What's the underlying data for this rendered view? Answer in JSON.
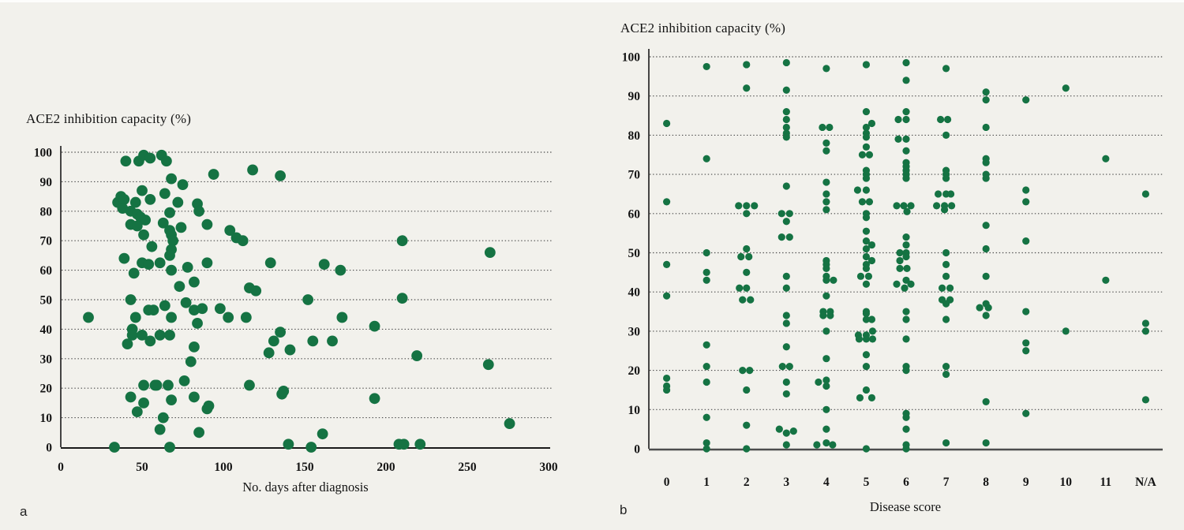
{
  "figure": {
    "background_color": "#f2f1ec",
    "dot_color": "#157343",
    "axis_color": "#1a1a1a",
    "grid_color": "#4a4a4a",
    "panel_a_letter": "a",
    "panel_b_letter": "b"
  },
  "chart_data": [
    {
      "type": "scatter",
      "panel": "a",
      "title": "ACE2 inhibition capacity (%)",
      "xlabel": "No. days after diagnosis",
      "ylabel": "ACE2 inhibition capacity (%)",
      "xlim": [
        0,
        300
      ],
      "ylim": [
        0,
        100
      ],
      "xticks": [
        0,
        50,
        100,
        150,
        200,
        250,
        300
      ],
      "yticks": [
        0,
        10,
        20,
        30,
        40,
        50,
        60,
        70,
        80,
        90,
        100
      ],
      "grid": "horizontal-dotted",
      "legend": "none",
      "points": [
        [
          40,
          97
        ],
        [
          48,
          97
        ],
        [
          51,
          99
        ],
        [
          55,
          98
        ],
        [
          62,
          99
        ],
        [
          65,
          97
        ],
        [
          68,
          91
        ],
        [
          75,
          89
        ],
        [
          94,
          92.5
        ],
        [
          118,
          94
        ],
        [
          135,
          92
        ],
        [
          35,
          83
        ],
        [
          37,
          85
        ],
        [
          39,
          84
        ],
        [
          38,
          81
        ],
        [
          43,
          80
        ],
        [
          46,
          83
        ],
        [
          50,
          87
        ],
        [
          55,
          84
        ],
        [
          47,
          79
        ],
        [
          49,
          78
        ],
        [
          52,
          77
        ],
        [
          43,
          75.5
        ],
        [
          47,
          75
        ],
        [
          64,
          86
        ],
        [
          67,
          79.5
        ],
        [
          63,
          76
        ],
        [
          72,
          83
        ],
        [
          84,
          82.5
        ],
        [
          85,
          80
        ],
        [
          90,
          75.5
        ],
        [
          51,
          72
        ],
        [
          67,
          73.5
        ],
        [
          68,
          72
        ],
        [
          69,
          70
        ],
        [
          74,
          74.5
        ],
        [
          104,
          73.5
        ],
        [
          108,
          71
        ],
        [
          112,
          70
        ],
        [
          210,
          70
        ],
        [
          56,
          68
        ],
        [
          68,
          67
        ],
        [
          67,
          65
        ],
        [
          39,
          64
        ],
        [
          50,
          62.5
        ],
        [
          54,
          62
        ],
        [
          61,
          62.5
        ],
        [
          68,
          60
        ],
        [
          78,
          61
        ],
        [
          90,
          62.5
        ],
        [
          129,
          62.5
        ],
        [
          162,
          62
        ],
        [
          172,
          60
        ],
        [
          264,
          66
        ],
        [
          45,
          59
        ],
        [
          73,
          54.5
        ],
        [
          82,
          56
        ],
        [
          116,
          54
        ],
        [
          120,
          53
        ],
        [
          43,
          50
        ],
        [
          152,
          50
        ],
        [
          210,
          50.5
        ],
        [
          17,
          44
        ],
        [
          46,
          44
        ],
        [
          54,
          46.5
        ],
        [
          57,
          46.5
        ],
        [
          64,
          48
        ],
        [
          68,
          44
        ],
        [
          77,
          49
        ],
        [
          82,
          46.5
        ],
        [
          87,
          47
        ],
        [
          84,
          42
        ],
        [
          98,
          47
        ],
        [
          103,
          44
        ],
        [
          114,
          44
        ],
        [
          44,
          40
        ],
        [
          173,
          44
        ],
        [
          193,
          41
        ],
        [
          44,
          38
        ],
        [
          50,
          38
        ],
        [
          55,
          36
        ],
        [
          61,
          38
        ],
        [
          67,
          38
        ],
        [
          41,
          35
        ],
        [
          82,
          34
        ],
        [
          128,
          32
        ],
        [
          131,
          36
        ],
        [
          135,
          39
        ],
        [
          141,
          33
        ],
        [
          155,
          36
        ],
        [
          167,
          36
        ],
        [
          219,
          31
        ],
        [
          51,
          21
        ],
        [
          58,
          21
        ],
        [
          59,
          21
        ],
        [
          66,
          21
        ],
        [
          76,
          22.5
        ],
        [
          80,
          29
        ],
        [
          116,
          21
        ],
        [
          263,
          28
        ],
        [
          43,
          17
        ],
        [
          51,
          15
        ],
        [
          68,
          16
        ],
        [
          82,
          17
        ],
        [
          90,
          13
        ],
        [
          91,
          14
        ],
        [
          47,
          12
        ],
        [
          63,
          10
        ],
        [
          136,
          18
        ],
        [
          137,
          19
        ],
        [
          193,
          16.5
        ],
        [
          61,
          6
        ],
        [
          85,
          5
        ],
        [
          33,
          0
        ],
        [
          67,
          0
        ],
        [
          140,
          1
        ],
        [
          154,
          0
        ],
        [
          161,
          4.5
        ],
        [
          208,
          1
        ],
        [
          211,
          1
        ],
        [
          221,
          1
        ],
        [
          276,
          8
        ]
      ]
    },
    {
      "type": "scatter",
      "panel": "b",
      "title": "ACE2 inhibition capacity (%)",
      "xlabel": "Disease score",
      "ylabel": "ACE2 inhibition capacity (%)",
      "categories": [
        "0",
        "1",
        "2",
        "3",
        "4",
        "5",
        "6",
        "7",
        "8",
        "9",
        "10",
        "11",
        "N/A"
      ],
      "ylim": [
        0,
        100
      ],
      "yticks": [
        0,
        10,
        20,
        30,
        40,
        50,
        60,
        70,
        80,
        90,
        100
      ],
      "grid": "horizontal-dotted",
      "legend": "none",
      "points": [
        [
          0,
          83
        ],
        [
          0,
          63
        ],
        [
          0,
          47
        ],
        [
          0,
          39
        ],
        [
          0,
          18
        ],
        [
          0,
          16
        ],
        [
          0,
          15
        ],
        [
          1,
          97.5
        ],
        [
          1,
          74
        ],
        [
          1,
          50
        ],
        [
          1,
          45
        ],
        [
          1,
          43
        ],
        [
          1,
          26.5
        ],
        [
          1,
          21
        ],
        [
          1,
          17
        ],
        [
          1,
          8
        ],
        [
          1,
          1.5
        ],
        [
          1,
          0
        ],
        [
          2,
          98
        ],
        [
          2,
          92
        ],
        [
          2,
          62,
          -10
        ],
        [
          2,
          62
        ],
        [
          2,
          62,
          10
        ],
        [
          2,
          60
        ],
        [
          2,
          51
        ],
        [
          2,
          49,
          -7
        ],
        [
          2,
          49,
          3
        ],
        [
          2,
          45
        ],
        [
          2,
          41,
          -9
        ],
        [
          2,
          41
        ],
        [
          2,
          38,
          -5
        ],
        [
          2,
          38,
          5
        ],
        [
          2,
          20,
          -5
        ],
        [
          2,
          20,
          4
        ],
        [
          2,
          15
        ],
        [
          2,
          6
        ],
        [
          2,
          0
        ],
        [
          3,
          98.5
        ],
        [
          3,
          91.5
        ],
        [
          3,
          86
        ],
        [
          3,
          84
        ],
        [
          3,
          82
        ],
        [
          3,
          80.5
        ],
        [
          3,
          79.5
        ],
        [
          3,
          67
        ],
        [
          3,
          60,
          -6
        ],
        [
          3,
          60,
          4
        ],
        [
          3,
          58
        ],
        [
          3,
          54,
          -6
        ],
        [
          3,
          54,
          4
        ],
        [
          3,
          44
        ],
        [
          3,
          41
        ],
        [
          3,
          34
        ],
        [
          3,
          32
        ],
        [
          3,
          26
        ],
        [
          3,
          21,
          -5
        ],
        [
          3,
          21,
          4
        ],
        [
          3,
          17
        ],
        [
          3,
          14
        ],
        [
          3,
          5,
          -9
        ],
        [
          3,
          4
        ],
        [
          3,
          4.5,
          9
        ],
        [
          3,
          1
        ],
        [
          4,
          97
        ],
        [
          4,
          82,
          -5
        ],
        [
          4,
          82,
          4
        ],
        [
          4,
          78
        ],
        [
          4,
          76
        ],
        [
          4,
          68
        ],
        [
          4,
          65
        ],
        [
          4,
          63
        ],
        [
          4,
          61
        ],
        [
          4,
          48
        ],
        [
          4,
          47
        ],
        [
          4,
          46
        ],
        [
          4,
          44
        ],
        [
          4,
          43
        ],
        [
          4,
          43,
          9
        ],
        [
          4,
          39
        ],
        [
          4,
          35,
          -4
        ],
        [
          4,
          35,
          5
        ],
        [
          4,
          34,
          -4
        ],
        [
          4,
          34,
          5
        ],
        [
          4,
          30
        ],
        [
          4,
          23
        ],
        [
          4,
          17.5
        ],
        [
          4,
          17,
          -10
        ],
        [
          4,
          16
        ],
        [
          4,
          10
        ],
        [
          4,
          5
        ],
        [
          4,
          1.5
        ],
        [
          4,
          1,
          -12
        ],
        [
          4,
          1,
          8
        ],
        [
          5,
          98
        ],
        [
          5,
          86
        ],
        [
          5,
          83,
          7
        ],
        [
          5,
          82
        ],
        [
          5,
          80.5
        ],
        [
          5,
          79.5
        ],
        [
          5,
          77
        ],
        [
          5,
          75,
          -5
        ],
        [
          5,
          75,
          4
        ],
        [
          5,
          71
        ],
        [
          5,
          70
        ],
        [
          5,
          69
        ],
        [
          5,
          66,
          -11
        ],
        [
          5,
          66
        ],
        [
          5,
          63,
          -5
        ],
        [
          5,
          63,
          4
        ],
        [
          5,
          60
        ],
        [
          5,
          59
        ],
        [
          5,
          55.5
        ],
        [
          5,
          53
        ],
        [
          5,
          52,
          7
        ],
        [
          5,
          51
        ],
        [
          5,
          49
        ],
        [
          5,
          48,
          7
        ],
        [
          5,
          47
        ],
        [
          5,
          46
        ],
        [
          5,
          44,
          -7
        ],
        [
          5,
          44,
          3
        ],
        [
          5,
          42
        ],
        [
          5,
          35
        ],
        [
          5,
          34.5
        ],
        [
          5,
          33
        ],
        [
          5,
          33,
          7
        ],
        [
          5,
          30,
          8
        ],
        [
          5,
          29,
          -10
        ],
        [
          5,
          29
        ],
        [
          5,
          28,
          -9
        ],
        [
          5,
          28
        ],
        [
          5,
          28,
          8
        ],
        [
          5,
          24
        ],
        [
          5,
          21
        ],
        [
          5,
          15
        ],
        [
          5,
          13,
          -8
        ],
        [
          5,
          13,
          7
        ],
        [
          5,
          0
        ],
        [
          6,
          98.5
        ],
        [
          6,
          94
        ],
        [
          6,
          86
        ],
        [
          6,
          84,
          -10
        ],
        [
          6,
          84
        ],
        [
          6,
          79,
          -10
        ],
        [
          6,
          79
        ],
        [
          6,
          76
        ],
        [
          6,
          73
        ],
        [
          6,
          72
        ],
        [
          6,
          71
        ],
        [
          6,
          70
        ],
        [
          6,
          69
        ],
        [
          6,
          62,
          -12
        ],
        [
          6,
          62,
          -3
        ],
        [
          6,
          62,
          6
        ],
        [
          6,
          60.5,
          1
        ],
        [
          6,
          54
        ],
        [
          6,
          52
        ],
        [
          6,
          50,
          -8
        ],
        [
          6,
          50
        ],
        [
          6,
          49
        ],
        [
          6,
          48,
          -8
        ],
        [
          6,
          46,
          -8
        ],
        [
          6,
          46,
          1
        ],
        [
          6,
          43
        ],
        [
          6,
          42,
          -12
        ],
        [
          6,
          41,
          -2
        ],
        [
          6,
          42,
          6
        ],
        [
          6,
          35
        ],
        [
          6,
          33
        ],
        [
          6,
          28
        ],
        [
          6,
          21
        ],
        [
          6,
          20
        ],
        [
          6,
          9
        ],
        [
          6,
          8
        ],
        [
          6,
          5
        ],
        [
          6,
          1
        ],
        [
          6,
          0
        ],
        [
          7,
          97
        ],
        [
          7,
          84,
          -7
        ],
        [
          7,
          84,
          2
        ],
        [
          7,
          80
        ],
        [
          7,
          71
        ],
        [
          7,
          70
        ],
        [
          7,
          69
        ],
        [
          7,
          65,
          -10
        ],
        [
          7,
          65
        ],
        [
          7,
          65,
          6
        ],
        [
          7,
          62,
          -12
        ],
        [
          7,
          62,
          -2
        ],
        [
          7,
          62,
          7
        ],
        [
          7,
          61,
          -2
        ],
        [
          7,
          50
        ],
        [
          7,
          47
        ],
        [
          7,
          44
        ],
        [
          7,
          41,
          -5
        ],
        [
          7,
          41,
          5
        ],
        [
          7,
          38,
          -5
        ],
        [
          7,
          38,
          5
        ],
        [
          7,
          37
        ],
        [
          7,
          33
        ],
        [
          7,
          21
        ],
        [
          7,
          19
        ],
        [
          7,
          1.5
        ],
        [
          8,
          91
        ],
        [
          8,
          89
        ],
        [
          8,
          82
        ],
        [
          8,
          74
        ],
        [
          8,
          73
        ],
        [
          8,
          70
        ],
        [
          8,
          69
        ],
        [
          8,
          57
        ],
        [
          8,
          51
        ],
        [
          8,
          44
        ],
        [
          8,
          37
        ],
        [
          8,
          36,
          -8
        ],
        [
          8,
          36,
          3
        ],
        [
          8,
          34
        ],
        [
          8,
          12
        ],
        [
          8,
          1.5
        ],
        [
          9,
          89
        ],
        [
          9,
          66
        ],
        [
          9,
          63
        ],
        [
          9,
          53
        ],
        [
          9,
          35
        ],
        [
          9,
          27
        ],
        [
          9,
          25
        ],
        [
          9,
          9
        ],
        [
          10,
          92
        ],
        [
          10,
          30
        ],
        [
          11,
          74
        ],
        [
          11,
          43
        ],
        [
          12,
          65
        ],
        [
          12,
          32
        ],
        [
          12,
          30
        ],
        [
          12,
          12.5
        ]
      ]
    }
  ]
}
